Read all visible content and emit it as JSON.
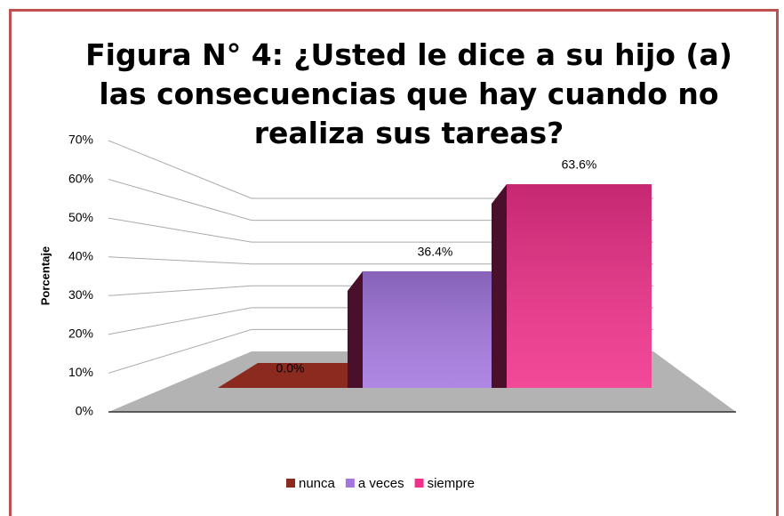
{
  "chart_data": {
    "type": "bar3d",
    "title": "Figura N° 4: ¿Usted le dice a su hijo (a) las consecuencias que hay cuando no realiza sus tareas?",
    "ylabel": "Porcentaje",
    "series": [
      {
        "name": "nunca",
        "color": "#8b2a1f",
        "values": [
          0.0
        ],
        "value_labels": [
          "0.0%"
        ]
      },
      {
        "name": "a veces",
        "color": "#a477e0",
        "values": [
          36.4
        ],
        "value_labels": [
          "36.4%"
        ]
      },
      {
        "name": "siempre",
        "color": "#f0308a",
        "values": [
          63.6
        ],
        "value_labels": [
          "63.6%"
        ]
      }
    ],
    "ylim": [
      0,
      70
    ],
    "yticks": [
      {
        "value": 0,
        "label": "0%"
      },
      {
        "value": 10,
        "label": "10%"
      },
      {
        "value": 20,
        "label": "20%"
      },
      {
        "value": 30,
        "label": "30%"
      },
      {
        "value": 40,
        "label": "40%"
      },
      {
        "value": 50,
        "label": "50%"
      },
      {
        "value": 60,
        "label": "60%"
      },
      {
        "value": 70,
        "label": "70%"
      }
    ],
    "grid": true,
    "legend": "bottom"
  }
}
